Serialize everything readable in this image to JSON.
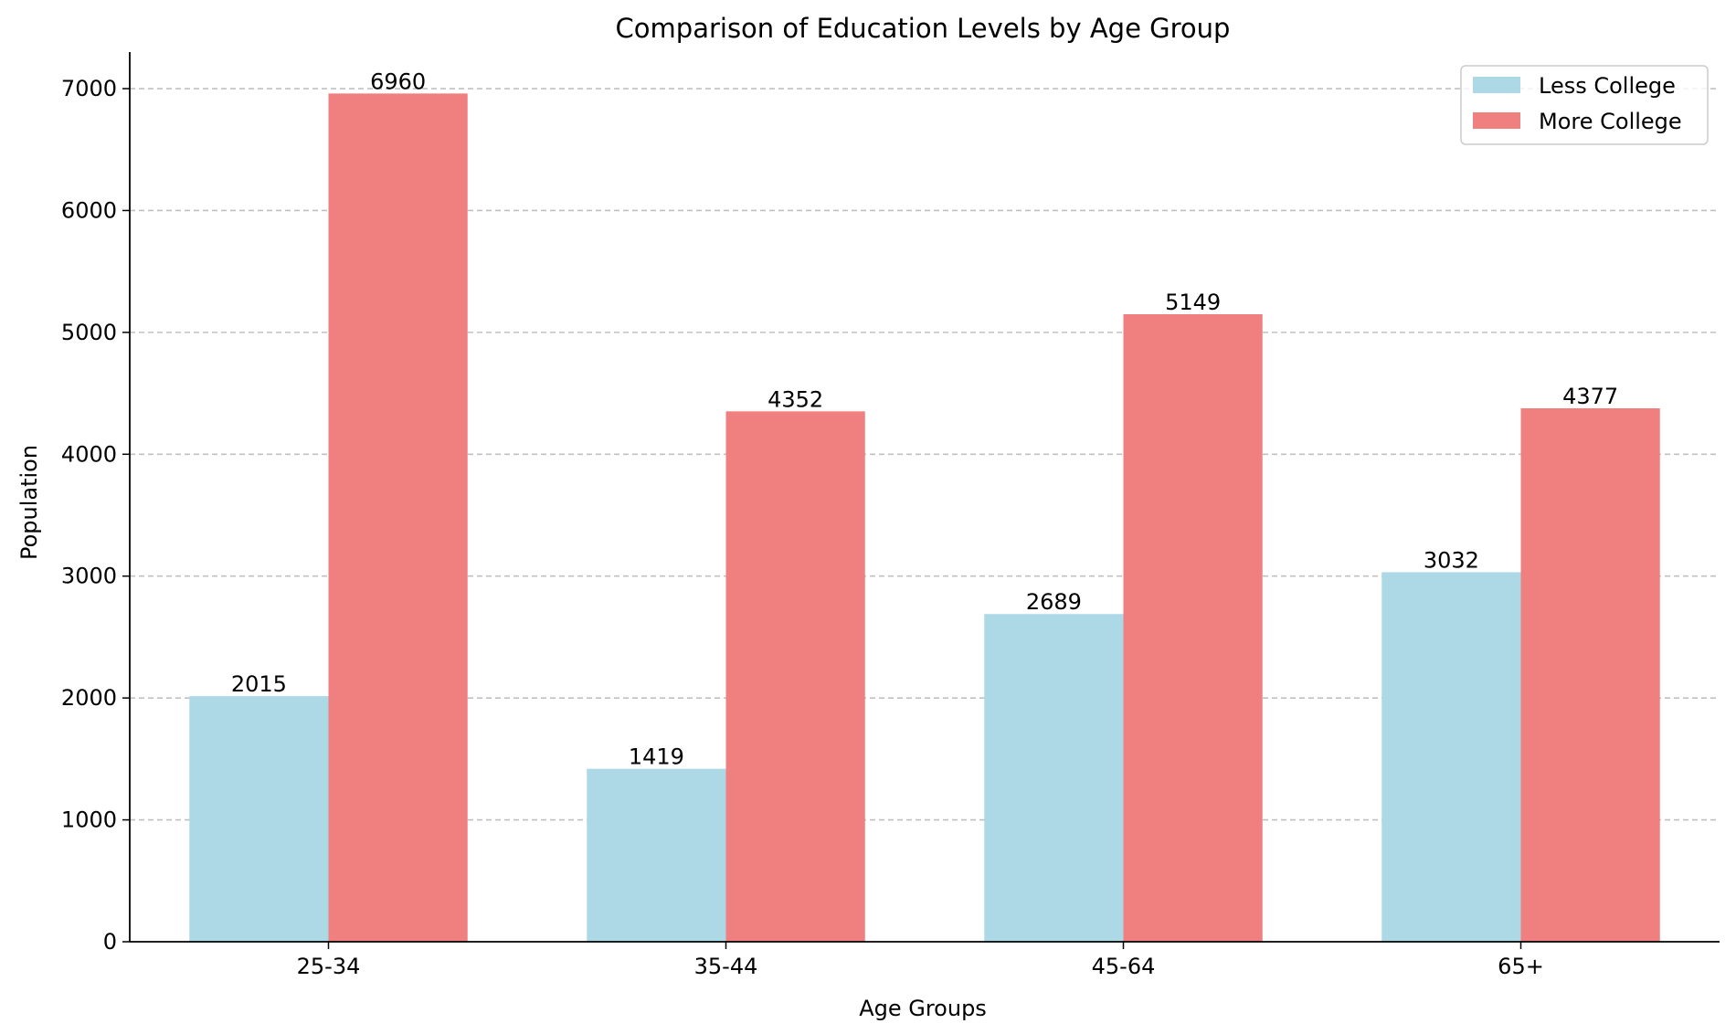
{
  "chart_data": {
    "type": "bar",
    "title": "Comparison of Education Levels by Age Group",
    "xlabel": "Age Groups",
    "ylabel": "Population",
    "categories": [
      "25-34",
      "35-44",
      "45-64",
      "65+"
    ],
    "series": [
      {
        "name": "Less College",
        "values": [
          2015,
          1419,
          2689,
          3032
        ],
        "color": "#add8e6"
      },
      {
        "name": "More College",
        "values": [
          6960,
          4352,
          5149,
          4377
        ],
        "color": "#f08080"
      }
    ],
    "ylim": [
      0,
      7300
    ],
    "yticks": [
      0,
      1000,
      2000,
      3000,
      4000,
      5000,
      6000,
      7000
    ],
    "grid": {
      "y": true,
      "style": "dashed",
      "color": "#c0c0c0"
    },
    "legend": "top-right",
    "data_labels": true
  }
}
